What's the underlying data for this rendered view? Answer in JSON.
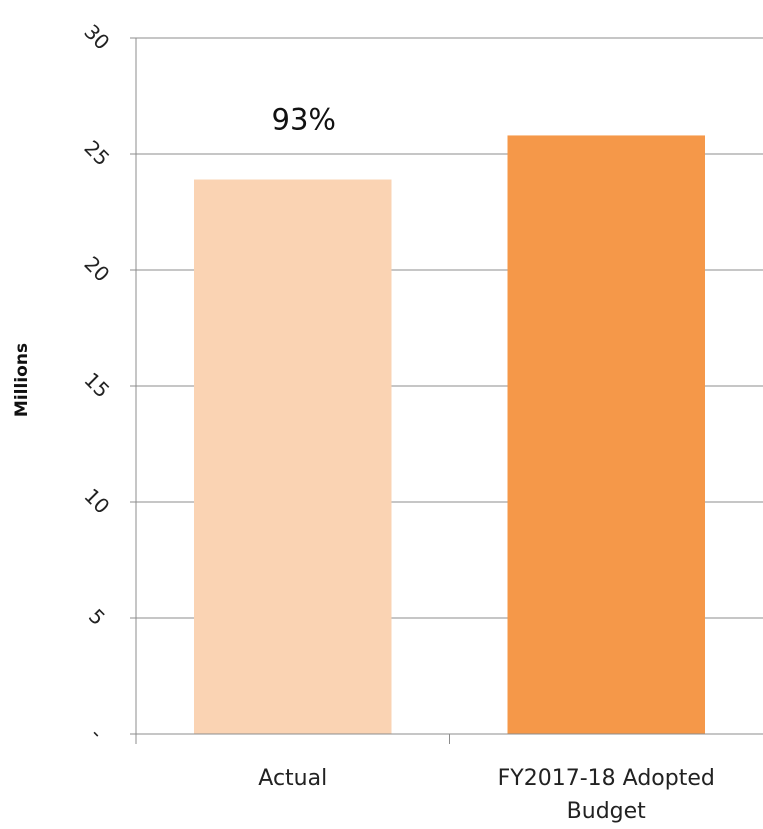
{
  "chart_data": {
    "type": "bar",
    "title": "",
    "xlabel": "",
    "ylabel": "Millions",
    "ylim": [
      0,
      30
    ],
    "yticks": [
      0,
      5,
      10,
      15,
      20,
      25,
      30
    ],
    "ytick_labels": [
      "-",
      "5",
      "10",
      "15",
      "20",
      "25",
      "30"
    ],
    "categories": [
      "Actual",
      "FY2017-18 Adopted Budget"
    ],
    "category_lines": [
      [
        "Actual"
      ],
      [
        "FY2017-18 Adopted",
        "Budget"
      ]
    ],
    "values": [
      23.9,
      25.8
    ],
    "bar_colors": [
      "#fad3b3",
      "#f59849"
    ],
    "data_labels": [
      "93%",
      ""
    ],
    "grid": true,
    "legend": "none"
  }
}
